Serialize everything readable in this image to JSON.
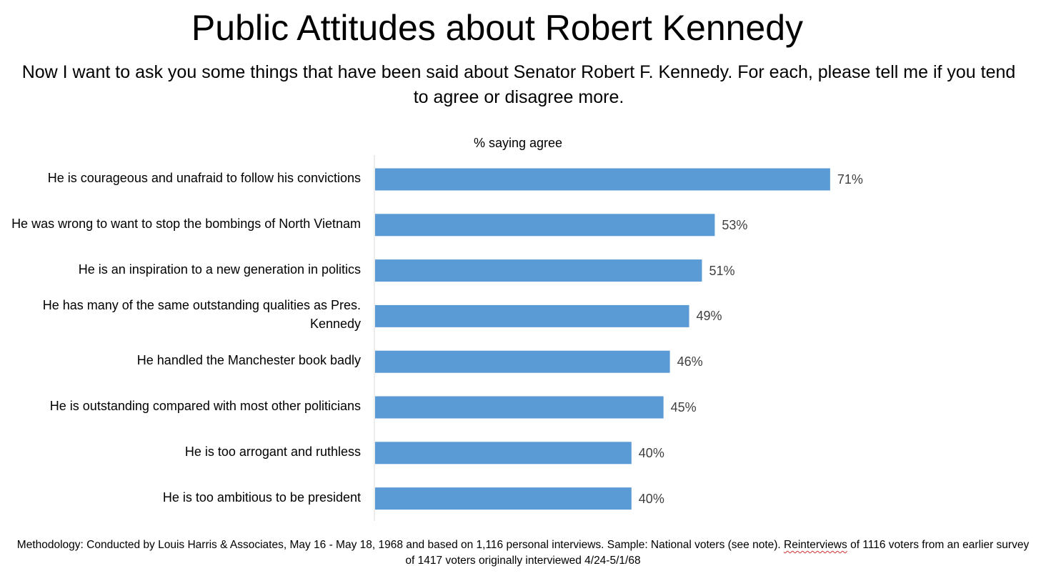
{
  "title": "Public Attitudes about Robert Kennedy",
  "subtitle": "Now I want to ask you some things that have been said about Senator Robert F. Kennedy. For each, please tell me if you tend to agree or disagree more.",
  "methodology": {
    "before": "Methodology: Conducted by Louis Harris & Associates, May 16 - May 18, 1968 and based on 1,116 personal interviews. Sample: National voters (see note). ",
    "flagged": "Reinterviews",
    "after": " of 1116 voters from an earlier survey of 1417 voters originally interviewed 4/24-5/1/68"
  },
  "colors": {
    "bar": "#5b9bd5",
    "axis": "#d9d9d9",
    "value_text": "#404040"
  },
  "chart_data": {
    "type": "bar",
    "orientation": "horizontal",
    "axis_caption": "% saying agree",
    "categories": [
      "He is courageous and unafraid to follow his convictions",
      "He was wrong to want to stop the bombings of North Vietnam",
      "He is an inspiration to a new generation in politics",
      "He has many of the same outstanding qualities as Pres. Kennedy",
      "He handled the Manchester book badly",
      "He is outstanding compared with most other politicians",
      "He is too arrogant and ruthless",
      "He is too ambitious to be president"
    ],
    "values": [
      71,
      53,
      51,
      49,
      46,
      45,
      40,
      40
    ],
    "value_labels": [
      "71%",
      "53%",
      "51%",
      "49%",
      "46%",
      "45%",
      "40%",
      "40%"
    ],
    "unit": "%",
    "xlim": [
      0,
      100
    ],
    "grid": false,
    "legend": "none"
  }
}
